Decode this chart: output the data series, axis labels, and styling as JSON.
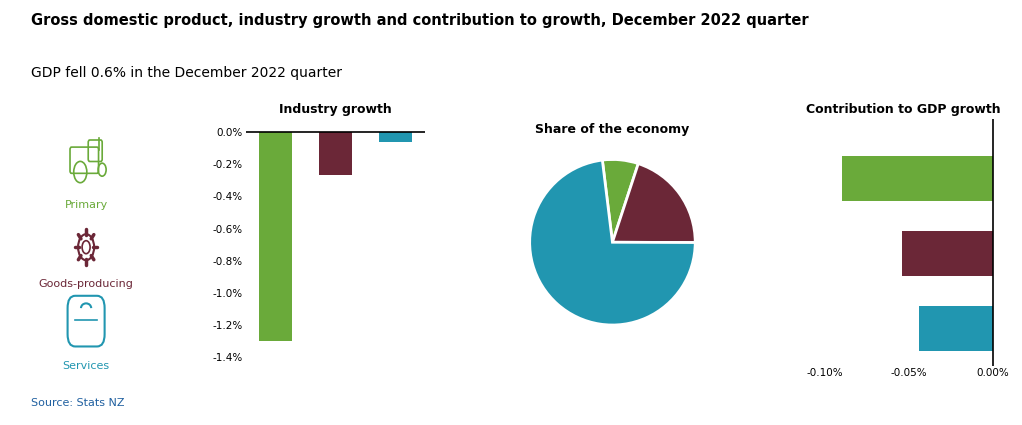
{
  "title": "Gross domestic product, industry growth and contribution to growth, December 2022 quarter",
  "subtitle": "GDP fell 0.6% in the December 2022 quarter",
  "source": "Source: Stats NZ",
  "colors": {
    "primary": "#6aaa3a",
    "goods": "#6b2737",
    "services": "#2196b0",
    "background": "#ffffff",
    "title_color": "#000000",
    "subtitle_color": "#000000",
    "source_color": "#2060a0"
  },
  "industry_growth": {
    "title": "Industry growth",
    "categories": [
      "Primary",
      "Goods-producing",
      "Services"
    ],
    "values": [
      -1.3,
      -0.27,
      -0.06
    ],
    "ylim": [
      -1.45,
      0.08
    ],
    "yticks": [
      0.0,
      -0.2,
      -0.4,
      -0.6,
      -0.8,
      -1.0,
      -1.2,
      -1.4
    ]
  },
  "pie_chart": {
    "title": "Share of the economy",
    "values": [
      7,
      20,
      73
    ],
    "colors": [
      "#6aaa3a",
      "#6b2737",
      "#2196b0"
    ],
    "startangle": 97
  },
  "contribution": {
    "title": "Contribution to GDP growth",
    "categories": [
      "Primary",
      "Goods-producing",
      "Services"
    ],
    "values": [
      -0.09,
      -0.054,
      -0.044
    ],
    "xlim": [
      -0.115,
      0.008
    ],
    "xticks": [
      -0.1,
      -0.05,
      0.0
    ],
    "xtick_labels": [
      "-0.10%",
      "-0.05%",
      "0.00%"
    ]
  }
}
